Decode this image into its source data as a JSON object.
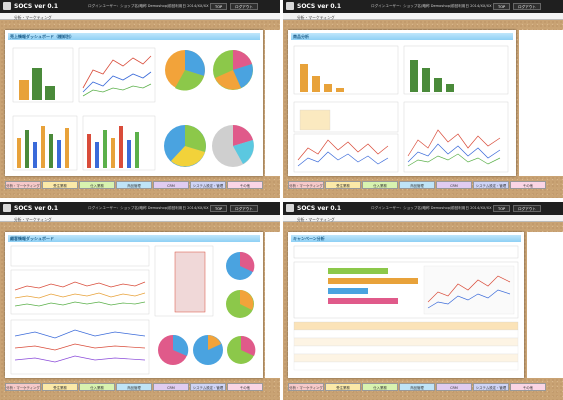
{
  "app": {
    "name": "SOCS ver 0.1",
    "user_label": "ログインユーザー:",
    "shop_label": "ショップ名(略称 Demoshop)",
    "login_info": "前回利用日 2014/XX/XX",
    "top_button": "TOP",
    "logout_button": "ログアウト",
    "section": "分析・マーケティング"
  },
  "panels": [
    {
      "title": "売上情報ダッシュボード（棚卸別）"
    },
    {
      "title": "商品分析"
    },
    {
      "title": "顧客情報ダッシュボード"
    },
    {
      "title": "キャンペーン分析"
    }
  ],
  "tabs": [
    "分析・マーケティング",
    "受注業務",
    "仕入業務",
    "商品管理",
    "CRM",
    "システム設定・管理",
    "その他"
  ],
  "tab_colors": [
    "#f6c9c9",
    "#fbe9a8",
    "#d8f3b0",
    "#bfe4f7",
    "#e0ccf1",
    "#cfd4f6",
    "#fad5e5"
  ],
  "colors": {
    "topbar": "#1f1f1f",
    "title_blue": "#8fd0f5",
    "cork": "#c9a374"
  }
}
